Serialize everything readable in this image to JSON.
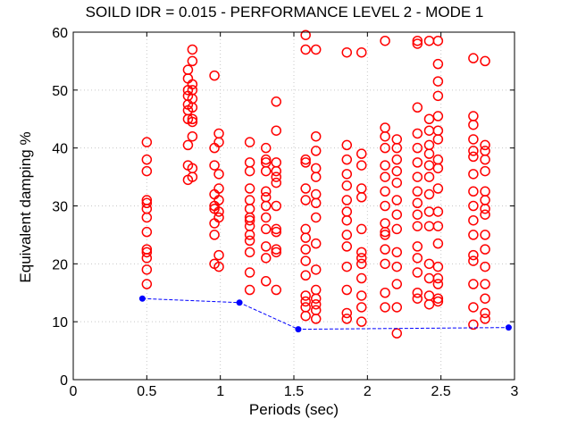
{
  "chart_data": {
    "type": "scatter",
    "title": "SOILD IDR = 0.015 - PERFORMANCE LEVEL 2 - MODE 1",
    "xlabel": "Periods (sec)",
    "ylabel": "Equivalent damping %",
    "xlim": [
      0,
      3
    ],
    "ylim": [
      0,
      60
    ],
    "xticks": [
      "0",
      "0.5",
      "1",
      "1.5",
      "2",
      "2.5",
      "3"
    ],
    "yticks": [
      "0",
      "10",
      "20",
      "30",
      "40",
      "50",
      "60"
    ],
    "grid": true,
    "colors": {
      "scatter": "#ff0000",
      "line": "#0000ff",
      "axes": "#000000"
    },
    "series": [
      {
        "type": "scatter",
        "marker": "circle",
        "x": [
          0.5,
          0.5,
          0.5,
          0.5,
          0.5,
          0.5,
          0.5,
          0.5,
          0.5,
          0.5,
          0.5,
          0.5,
          0.5,
          0.78,
          0.78,
          0.78,
          0.78,
          0.78,
          0.78,
          0.78,
          0.78,
          0.78,
          0.78,
          0.81,
          0.81,
          0.81,
          0.81,
          0.81,
          0.81,
          0.81,
          0.81,
          0.81,
          0.81,
          0.81,
          0.96,
          0.96,
          0.96,
          0.96,
          0.96,
          0.96,
          0.96,
          0.96,
          0.96,
          0.99,
          0.99,
          0.99,
          0.99,
          0.99,
          0.99,
          0.99,
          0.99,
          0.99,
          1.2,
          1.2,
          1.2,
          1.2,
          1.2,
          1.2,
          1.2,
          1.2,
          1.2,
          1.2,
          1.2,
          1.2,
          1.2,
          1.2,
          1.31,
          1.31,
          1.31,
          1.31,
          1.31,
          1.31,
          1.31,
          1.31,
          1.31,
          1.31,
          1.31,
          1.31,
          1.38,
          1.38,
          1.38,
          1.38,
          1.38,
          1.38,
          1.38,
          1.38,
          1.38,
          1.38,
          1.38,
          1.38,
          1.58,
          1.58,
          1.58,
          1.58,
          1.58,
          1.58,
          1.58,
          1.58,
          1.58,
          1.58,
          1.58,
          1.58,
          1.58,
          1.58,
          1.58,
          1.65,
          1.65,
          1.65,
          1.65,
          1.65,
          1.65,
          1.65,
          1.65,
          1.65,
          1.65,
          1.65,
          1.65,
          1.65,
          1.65,
          1.65,
          1.86,
          1.86,
          1.86,
          1.86,
          1.86,
          1.86,
          1.86,
          1.86,
          1.86,
          1.86,
          1.86,
          1.86,
          1.86,
          1.86,
          1.96,
          1.96,
          1.96,
          1.96,
          1.96,
          1.96,
          1.96,
          1.96,
          1.96,
          1.96,
          1.96,
          1.96,
          1.96,
          2.12,
          2.12,
          2.12,
          2.12,
          2.12,
          2.12,
          2.12,
          2.12,
          2.12,
          2.12,
          2.12,
          2.12,
          2.12,
          2.12,
          2.12,
          2.2,
          2.2,
          2.2,
          2.2,
          2.2,
          2.2,
          2.2,
          2.2,
          2.2,
          2.2,
          2.2,
          2.2,
          2.2,
          2.34,
          2.34,
          2.34,
          2.34,
          2.34,
          2.34,
          2.34,
          2.34,
          2.34,
          2.34,
          2.34,
          2.34,
          2.34,
          2.34,
          2.34,
          2.34,
          2.42,
          2.42,
          2.42,
          2.42,
          2.42,
          2.42,
          2.42,
          2.42,
          2.42,
          2.42,
          2.42,
          2.42,
          2.42,
          2.42,
          2.48,
          2.48,
          2.48,
          2.48,
          2.48,
          2.48,
          2.48,
          2.48,
          2.48,
          2.48,
          2.48,
          2.48,
          2.48,
          2.48,
          2.48,
          2.48,
          2.48,
          2.48,
          2.72,
          2.72,
          2.72,
          2.72,
          2.72,
          2.72,
          2.72,
          2.72,
          2.72,
          2.72,
          2.72,
          2.72,
          2.72,
          2.72,
          2.72,
          2.72,
          2.8,
          2.8,
          2.8,
          2.8,
          2.8,
          2.8,
          2.8,
          2.8,
          2.8,
          2.8,
          2.8,
          2.8,
          2.8,
          2.8,
          2.8,
          2.8
        ],
        "y": [
          16.5,
          19,
          21,
          22.5,
          25.5,
          28,
          29.5,
          30.5,
          31,
          36,
          38,
          41,
          22,
          34.5,
          37,
          40.5,
          45,
          46.5,
          47.5,
          49,
          50,
          52,
          53.5,
          35,
          36.5,
          42,
          44.5,
          45,
          47,
          48.5,
          50,
          51,
          55,
          57,
          20,
          25,
          27,
          29.5,
          30,
          32,
          37,
          40,
          52.5,
          21.5,
          28,
          29,
          31,
          33,
          35.5,
          41,
          42.5,
          19.5,
          15.5,
          18.5,
          22,
          24,
          25,
          26.5,
          27.5,
          28,
          29.5,
          31,
          33,
          36,
          37.5,
          41,
          17,
          21,
          23,
          26,
          28,
          30,
          31.5,
          32.5,
          36,
          37.5,
          40,
          38,
          15.5,
          22,
          22.5,
          25.5,
          26,
          30,
          34,
          35,
          36,
          37.5,
          43,
          48,
          11,
          12.5,
          13.5,
          14.5,
          18,
          20.5,
          22.5,
          24.5,
          26,
          31,
          33,
          37.5,
          38,
          57,
          59.5,
          10.5,
          12,
          13,
          14,
          15.5,
          19,
          23.5,
          28,
          30.5,
          32,
          35,
          36.5,
          39.5,
          42,
          57,
          10.5,
          11.5,
          15.5,
          19.5,
          23,
          25,
          27.5,
          29,
          31,
          33.5,
          35.5,
          38,
          40.5,
          56.5,
          10,
          12.5,
          14.5,
          17.5,
          20,
          21,
          22,
          26,
          31.5,
          33,
          37,
          39,
          56.5,
          12.5,
          15,
          20,
          22.5,
          25,
          27,
          30,
          32.5,
          35,
          37,
          40,
          42,
          43.5,
          58.5,
          25.5,
          8,
          12.5,
          16.5,
          19.5,
          22,
          26,
          28.5,
          31,
          34,
          36,
          38,
          40,
          41.5,
          14,
          15,
          18.5,
          21,
          23,
          26.5,
          28.5,
          30.5,
          32.5,
          35,
          37.5,
          40,
          42.5,
          47,
          58.5,
          58,
          13,
          14.5,
          17.5,
          20,
          26.5,
          29,
          32,
          35,
          37,
          39,
          40.5,
          43,
          45,
          58.5,
          13.5,
          14,
          16.5,
          17.5,
          19.5,
          23.5,
          26.5,
          29,
          33,
          36.5,
          38,
          41.5,
          43,
          45.5,
          49,
          51.5,
          54.5,
          58.5,
          9.5,
          12.5,
          16.5,
          20.5,
          21.5,
          25,
          27.5,
          30,
          32.5,
          35.5,
          38.5,
          39.5,
          41.5,
          44,
          45.5,
          55.5,
          10.5,
          11.5,
          14,
          16.5,
          19.5,
          22.5,
          25,
          28.5,
          29.5,
          31,
          32.5,
          36,
          38,
          39.5,
          40.5,
          55
        ]
      },
      {
        "type": "line",
        "style": "dashed",
        "marker": "dot",
        "x": [
          0.47,
          1.13,
          1.53,
          2.96
        ],
        "y": [
          14,
          13.3,
          8.7,
          9
        ]
      }
    ]
  }
}
